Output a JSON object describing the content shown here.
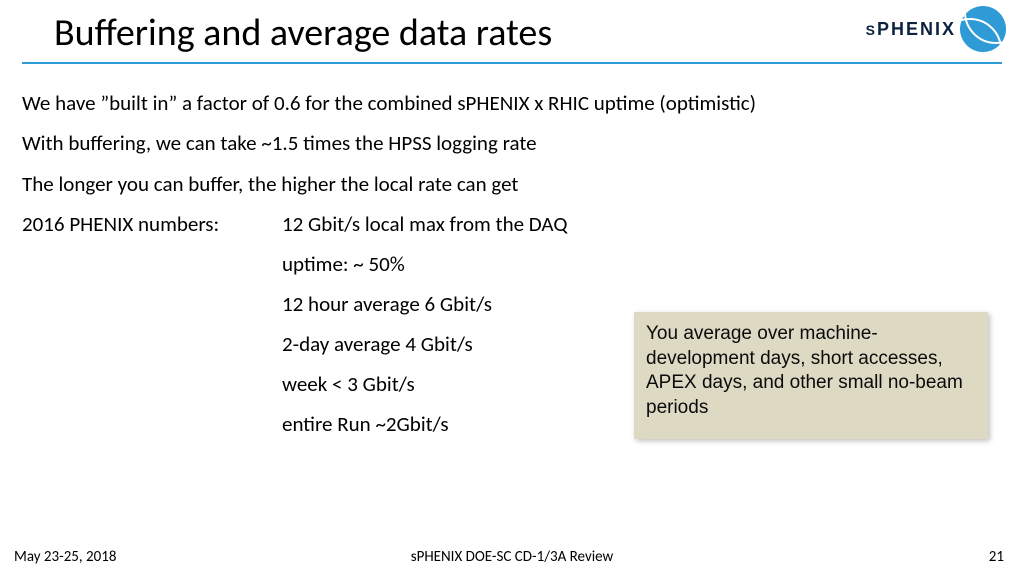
{
  "title": "Buffering and average data rates",
  "logo_text": "sPHENIX",
  "body": {
    "p1": "We have ”built in” a factor of 0.6 for the combined sPHENIX x RHIC uptime (optimistic)",
    "p2": "With buffering, we can take ~1.5 times the HPSS logging rate",
    "p3": "The longer you can buffer, the higher the local rate can get",
    "numbers_label": "2016 PHENIX numbers:",
    "numbers": {
      "n1": "12 Gbit/s local max from the DAQ",
      "n2": "uptime: ~ 50%",
      "n3": "12 hour average 6 Gbit/s",
      "n4": "2-day average 4 Gbit/s",
      "n5": "week < 3 Gbit/s",
      "n6": "entire Run  ~2Gbit/s"
    }
  },
  "note": "You average over machine-development days, short accesses, APEX days, and other small no-beam periods",
  "footer": {
    "date": "May 23-25, 2018",
    "center": "sPHENIX DOE-SC CD-1/3A Review",
    "page": "21"
  },
  "colors": {
    "rule": "#2e9bd6",
    "note_bg": "#ddd9c3",
    "logo_circle": "#2e9bd6",
    "logo_text": "#0b2340"
  }
}
